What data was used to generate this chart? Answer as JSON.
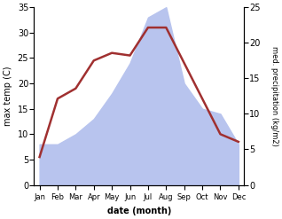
{
  "months": [
    "Jan",
    "Feb",
    "Mar",
    "Apr",
    "May",
    "Jun",
    "Jul",
    "Aug",
    "Sep",
    "Oct",
    "Nov",
    "Dec"
  ],
  "temp": [
    5.5,
    17.0,
    19.0,
    24.5,
    26.0,
    25.5,
    31.0,
    31.0,
    24.0,
    17.0,
    10.0,
    8.5
  ],
  "precip": [
    8,
    8,
    10,
    13,
    18,
    24,
    33,
    35,
    20,
    15,
    14,
    8
  ],
  "temp_color": "#a03030",
  "precip_color": "#b8c4ee",
  "ylim_temp": [
    0,
    35
  ],
  "ylim_precip": [
    0,
    25
  ],
  "xlabel": "date (month)",
  "ylabel_left": "max temp (C)",
  "ylabel_right": "med. precipitation (kg/m2)",
  "bg_color": "#ffffff",
  "yticks_temp": [
    0,
    5,
    10,
    15,
    20,
    25,
    30,
    35
  ],
  "yticks_precip": [
    0,
    5,
    10,
    15,
    20,
    25
  ]
}
